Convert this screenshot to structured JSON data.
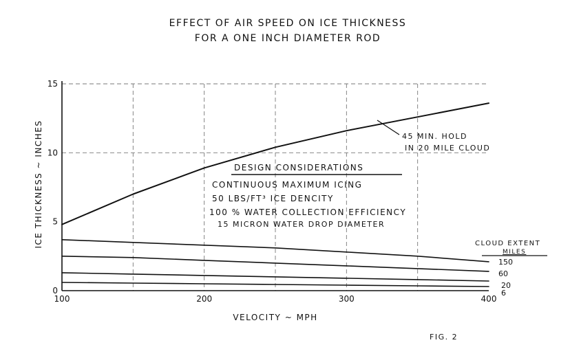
{
  "chart_data": {
    "type": "line",
    "title": "EFFECT OF AIR SPEED ON ICE THICKNESS",
    "subtitle": "FOR A ONE INCH DIAMETER ROD",
    "xlabel": "VELOCITY ~ MPH",
    "ylabel": "ICE THICKNESS ~ INCHES",
    "xlim": [
      100,
      400
    ],
    "ylim": [
      0,
      15
    ],
    "x_ticks": [
      100,
      200,
      300,
      400
    ],
    "y_ticks": [
      0,
      5,
      10,
      15
    ],
    "grid": true,
    "x": [
      100,
      150,
      200,
      250,
      300,
      350,
      400
    ],
    "series": [
      {
        "name": "45 MIN. HOLD IN 20 MILE CLOUD",
        "values": [
          4.8,
          7.0,
          8.9,
          10.4,
          11.6,
          12.6,
          13.6
        ]
      },
      {
        "name": "150",
        "values": [
          3.7,
          3.5,
          3.3,
          3.1,
          2.8,
          2.5,
          2.1
        ]
      },
      {
        "name": "60",
        "values": [
          2.5,
          2.4,
          2.2,
          2.0,
          1.8,
          1.6,
          1.4
        ]
      },
      {
        "name": "20",
        "values": [
          1.3,
          1.2,
          1.1,
          1.0,
          0.9,
          0.8,
          0.7
        ]
      },
      {
        "name": "6",
        "values": [
          0.6,
          0.55,
          0.5,
          0.45,
          0.4,
          0.35,
          0.3
        ]
      }
    ],
    "annotations": {
      "curve_label_line1": "45 MIN. HOLD",
      "curve_label_line2": "IN 20 MILE CLOUD",
      "design_header": "DESIGN CONSIDERATIONS",
      "design_items": [
        "CONTINUOUS MAXIMUM ICING",
        "50 LBS/FT³ ICE DENCITY",
        "100 % WATER COLLECTION EFFICIENCY",
        "15 MICRON WATER DROP DIAMETER"
      ],
      "legend_title_1": "CLOUD EXTENT",
      "legend_title_2": "MILES",
      "figure_label": "FIG. 2"
    }
  }
}
